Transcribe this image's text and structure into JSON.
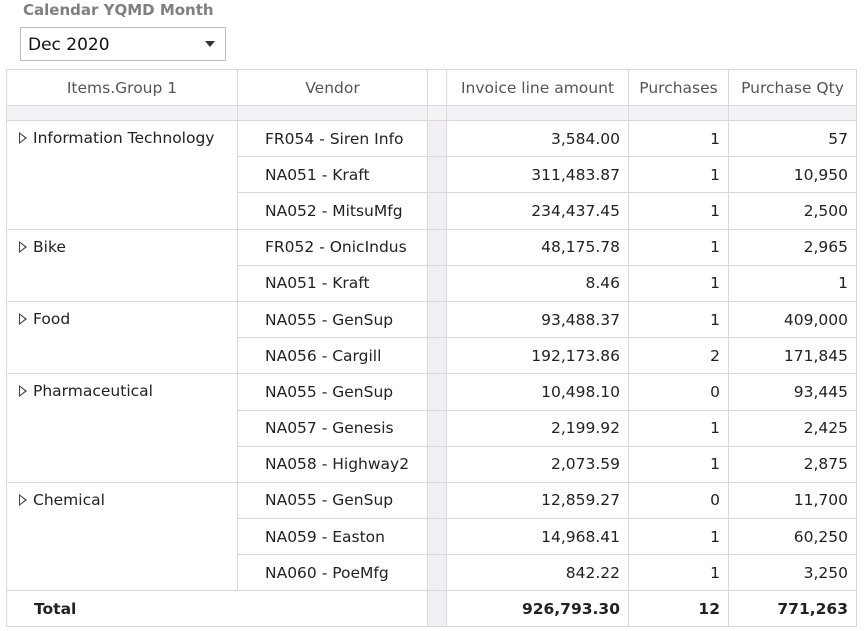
{
  "filter": {
    "label": "Calendar YQMD Month",
    "selected": "Dec 2020"
  },
  "table": {
    "headers": {
      "group": "Items.Group 1",
      "vendor": "Vendor",
      "amount": "Invoice line amount",
      "purchases": "Purchases",
      "qty": "Purchase Qty"
    },
    "groups": [
      {
        "name": "Information Technology",
        "rows": [
          {
            "vendor": "FR054 - Siren Info",
            "amount": "3,584.00",
            "purchases": "1",
            "qty": "57"
          },
          {
            "vendor": "NA051 - Kraft",
            "amount": "311,483.87",
            "purchases": "1",
            "qty": "10,950"
          },
          {
            "vendor": "NA052 - MitsuMfg",
            "amount": "234,437.45",
            "purchases": "1",
            "qty": "2,500"
          }
        ]
      },
      {
        "name": "Bike",
        "rows": [
          {
            "vendor": "FR052 - OnicIndus",
            "amount": "48,175.78",
            "purchases": "1",
            "qty": "2,965"
          },
          {
            "vendor": "NA051 - Kraft",
            "amount": "8.46",
            "purchases": "1",
            "qty": "1"
          }
        ]
      },
      {
        "name": "Food",
        "rows": [
          {
            "vendor": "NA055 - GenSup",
            "amount": "93,488.37",
            "purchases": "1",
            "qty": "409,000"
          },
          {
            "vendor": "NA056 - Cargill",
            "amount": "192,173.86",
            "purchases": "2",
            "qty": "171,845"
          }
        ]
      },
      {
        "name": "Pharmaceutical",
        "rows": [
          {
            "vendor": "NA055 - GenSup",
            "amount": "10,498.10",
            "purchases": "0",
            "qty": "93,445"
          },
          {
            "vendor": "NA057 - Genesis",
            "amount": "2,199.92",
            "purchases": "1",
            "qty": "2,425"
          },
          {
            "vendor": "NA058 - Highway2",
            "amount": "2,073.59",
            "purchases": "1",
            "qty": "2,875"
          }
        ]
      },
      {
        "name": "Chemical",
        "rows": [
          {
            "vendor": "NA055 - GenSup",
            "amount": "12,859.27",
            "purchases": "0",
            "qty": "11,700"
          },
          {
            "vendor": "NA059 - Easton",
            "amount": "14,968.41",
            "purchases": "1",
            "qty": "60,250"
          },
          {
            "vendor": "NA060 - PoeMfg",
            "amount": "842.22",
            "purchases": "1",
            "qty": "3,250"
          }
        ]
      }
    ],
    "total": {
      "label": "Total",
      "amount": "926,793.30",
      "purchases": "12",
      "qty": "771,263"
    }
  },
  "icons": {
    "expand": "expand-triangle-icon",
    "dropdown": "chevron-down-icon"
  }
}
